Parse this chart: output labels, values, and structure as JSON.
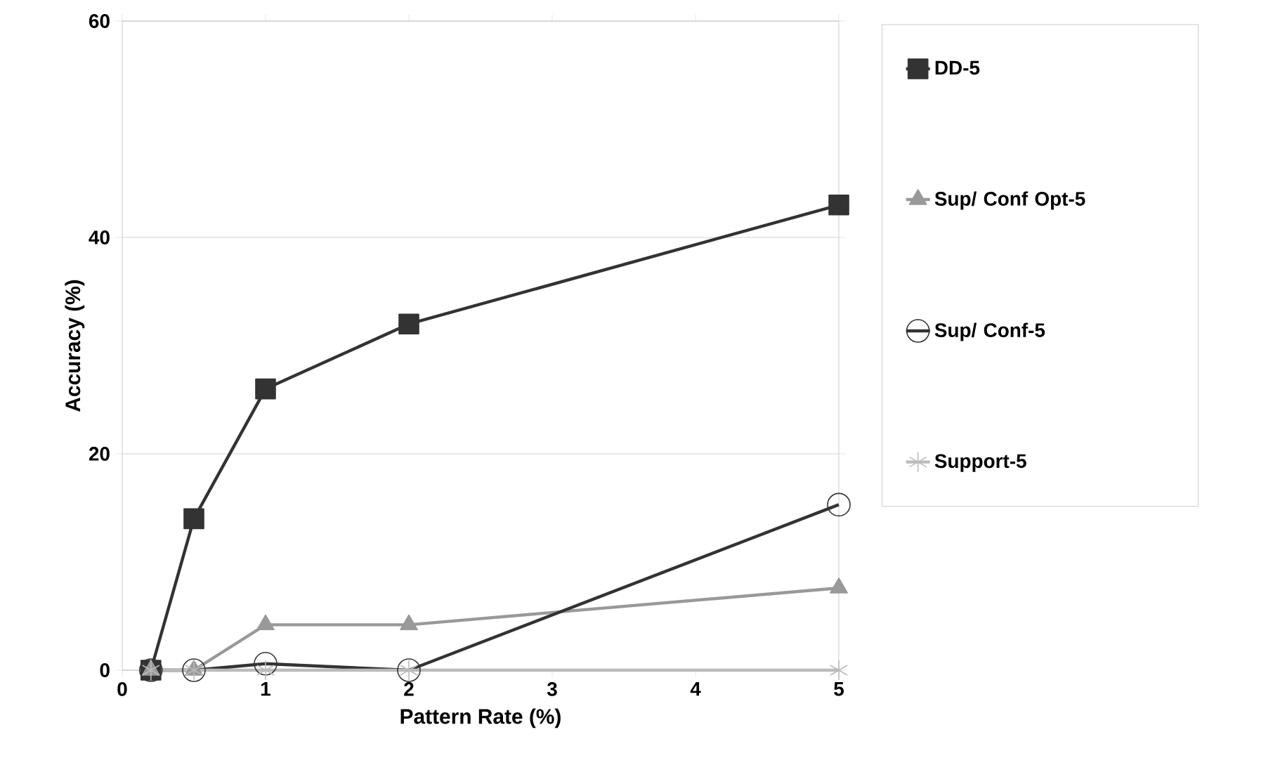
{
  "chart_data": {
    "type": "line",
    "xlabel": "Pattern Rate (%)",
    "ylabel": "Accuracy (%)",
    "x": [
      0.2,
      0.5,
      1,
      2,
      5
    ],
    "series": [
      {
        "name": "DD-5",
        "color": "#333333",
        "marker": "square",
        "values": [
          0,
          14,
          26,
          32,
          43
        ]
      },
      {
        "name": "Sup/ Conf Opt-5",
        "color": "#999999",
        "marker": "triangle",
        "values": [
          0,
          0,
          4.2,
          4.2,
          7.6
        ]
      },
      {
        "name": "Sup/ Conf-5",
        "color": "#333333",
        "marker": "circle",
        "values": [
          0,
          0,
          0.6,
          0,
          15.3
        ]
      },
      {
        "name": "Support-5",
        "color": "#bbbbbb",
        "marker": "cross",
        "values": [
          0,
          0,
          0,
          0,
          0
        ]
      }
    ],
    "xlim": [
      0,
      5
    ],
    "ylim": [
      0,
      60
    ],
    "xticks": [
      0,
      1,
      2,
      3,
      4,
      5
    ],
    "yticks": [
      0,
      20,
      40,
      60
    ],
    "grid": "y",
    "legend": "right",
    "line_style": "solid"
  }
}
